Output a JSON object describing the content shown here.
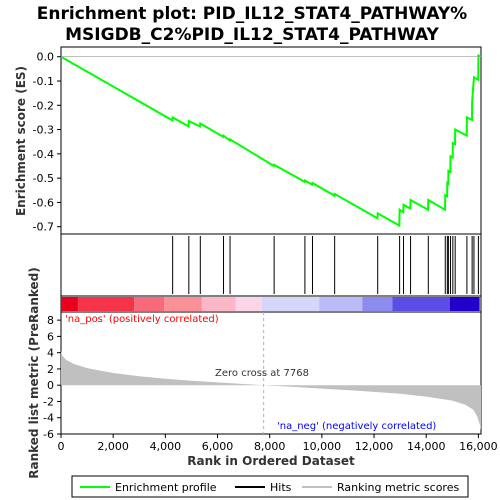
{
  "chart_data": {
    "type": "line",
    "title_line1": "Enrichment plot: PID_IL12_STAT4_PATHWAY%",
    "title_line2": "MSIGDB_C2%PID_IL12_STAT4_PATHWAY",
    "es_panel": {
      "ylabel": "Enrichment score (ES)",
      "ylim": [
        -0.73,
        0.04
      ],
      "yticks": [
        0.0,
        -0.1,
        -0.2,
        -0.3,
        -0.4,
        -0.5,
        -0.6,
        -0.7
      ],
      "ytick_labels": [
        "0.0",
        "-0.1",
        "-0.2",
        "-0.3",
        "-0.4",
        "-0.5",
        "-0.6",
        "-0.7"
      ],
      "series_name": "Enrichment profile",
      "color": "#00ff00",
      "hits": [
        4280,
        4900,
        5340,
        6230,
        6480,
        8170,
        9350,
        9640,
        10490,
        12140,
        12980,
        13130,
        13400,
        14080,
        14730,
        14810,
        14850,
        14930,
        15020,
        15110,
        15560,
        15760,
        15830,
        16000
      ],
      "es_at_hits": [
        -0.25,
        -0.265,
        -0.275,
        -0.325,
        -0.34,
        -0.445,
        -0.51,
        -0.52,
        -0.565,
        -0.645,
        -0.63,
        -0.61,
        -0.59,
        -0.59,
        -0.57,
        -0.52,
        -0.47,
        -0.41,
        -0.355,
        -0.3,
        -0.25,
        -0.19,
        -0.085,
        0.005
      ],
      "curve": [
        [
          0,
          0.0
        ],
        [
          4270,
          -0.262
        ],
        [
          4280,
          -0.25
        ],
        [
          4890,
          -0.287
        ],
        [
          4900,
          -0.265
        ],
        [
          5330,
          -0.287
        ],
        [
          5340,
          -0.275
        ],
        [
          6220,
          -0.33
        ],
        [
          6230,
          -0.325
        ],
        [
          6470,
          -0.345
        ],
        [
          6480,
          -0.34
        ],
        [
          8160,
          -0.45
        ],
        [
          8170,
          -0.445
        ],
        [
          9340,
          -0.515
        ],
        [
          9350,
          -0.51
        ],
        [
          9630,
          -0.527
        ],
        [
          9640,
          -0.52
        ],
        [
          10480,
          -0.572
        ],
        [
          10490,
          -0.565
        ],
        [
          12130,
          -0.665
        ],
        [
          12140,
          -0.645
        ],
        [
          12970,
          -0.695
        ],
        [
          12980,
          -0.63
        ],
        [
          13120,
          -0.64
        ],
        [
          13130,
          -0.61
        ],
        [
          13390,
          -0.625
        ],
        [
          13400,
          -0.59
        ],
        [
          14070,
          -0.63
        ],
        [
          14080,
          -0.59
        ],
        [
          14720,
          -0.63
        ],
        [
          14730,
          -0.57
        ],
        [
          14800,
          -0.575
        ],
        [
          14810,
          -0.52
        ],
        [
          14845,
          -0.523
        ],
        [
          14850,
          -0.47
        ],
        [
          14925,
          -0.475
        ],
        [
          14930,
          -0.41
        ],
        [
          15015,
          -0.415
        ],
        [
          15020,
          -0.355
        ],
        [
          15105,
          -0.36
        ],
        [
          15110,
          -0.3
        ],
        [
          15555,
          -0.325
        ],
        [
          15560,
          -0.25
        ],
        [
          15755,
          -0.26
        ],
        [
          15760,
          -0.19
        ],
        [
          15770,
          -0.17
        ],
        [
          15825,
          -0.092
        ],
        [
          15830,
          -0.085
        ],
        [
          15995,
          -0.095
        ],
        [
          16000,
          0.005
        ],
        [
          16100,
          0.0
        ]
      ]
    },
    "ranked_panel": {
      "ylabel": "Ranked list metric (PreRanked)",
      "ylim": [
        -6,
        9
      ],
      "yticks": [
        8,
        6,
        4,
        2,
        0,
        -2,
        -4,
        -6
      ],
      "ytick_labels": [
        "8",
        "6",
        "4",
        "2",
        "0",
        "-2",
        "-4",
        "-6"
      ],
      "xlabel": "Rank in Ordered Dataset",
      "xlim": [
        0,
        16100
      ],
      "xticks": [
        0,
        2000,
        4000,
        6000,
        8000,
        10000,
        12000,
        14000,
        16000
      ],
      "xtick_labels": [
        "0",
        "2,000",
        "4,000",
        "6,000",
        "8,000",
        "10,000",
        "12,000",
        "14,000",
        "16,000"
      ],
      "profile": [
        [
          0,
          4.2
        ],
        [
          60,
          3.6
        ],
        [
          200,
          3.1
        ],
        [
          500,
          2.6
        ],
        [
          1000,
          2.1
        ],
        [
          2000,
          1.5
        ],
        [
          3000,
          1.1
        ],
        [
          4000,
          0.8
        ],
        [
          5000,
          0.55
        ],
        [
          6000,
          0.35
        ],
        [
          7000,
          0.15
        ],
        [
          7768,
          0.0
        ],
        [
          9000,
          -0.22
        ],
        [
          10000,
          -0.42
        ],
        [
          11000,
          -0.6
        ],
        [
          12000,
          -0.82
        ],
        [
          13000,
          -1.05
        ],
        [
          14000,
          -1.4
        ],
        [
          15000,
          -1.9
        ],
        [
          15500,
          -2.4
        ],
        [
          15800,
          -3.0
        ],
        [
          15950,
          -3.8
        ],
        [
          16050,
          -4.8
        ],
        [
          16100,
          -5.5
        ]
      ],
      "fill_color": "#c0c0c0",
      "zero_cross": 7768,
      "zero_cross_label": "Zero cross at 7768",
      "pos_label": "'na_pos' (positively correlated)",
      "pos_color": "#ff0000",
      "neg_label": "'na_neg' (negatively correlated)",
      "neg_color": "#0000ff"
    },
    "heatmap_bar": {
      "segments": [
        {
          "from": 0,
          "to": 650,
          "color": "#e8001c"
        },
        {
          "from": 650,
          "to": 2800,
          "color": "#f5344a"
        },
        {
          "from": 2800,
          "to": 3950,
          "color": "#f86a7a"
        },
        {
          "from": 3950,
          "to": 5400,
          "color": "#fa9098"
        },
        {
          "from": 5400,
          "to": 6700,
          "color": "#fbb6c8"
        },
        {
          "from": 6700,
          "to": 7700,
          "color": "#fcd6e8"
        },
        {
          "from": 7700,
          "to": 9900,
          "color": "#d6d6fa"
        },
        {
          "from": 9900,
          "to": 11550,
          "color": "#babaf4"
        },
        {
          "from": 11550,
          "to": 12700,
          "color": "#8c8cee"
        },
        {
          "from": 12700,
          "to": 14900,
          "color": "#5a4ee6"
        },
        {
          "from": 14900,
          "to": 16050,
          "color": "#2200cc"
        }
      ]
    },
    "legend": [
      {
        "label": "Enrichment profile",
        "color": "#00ff00"
      },
      {
        "label": "Hits",
        "color": "#000000"
      },
      {
        "label": "Ranking metric scores",
        "color": "#c0c0c0"
      }
    ]
  }
}
